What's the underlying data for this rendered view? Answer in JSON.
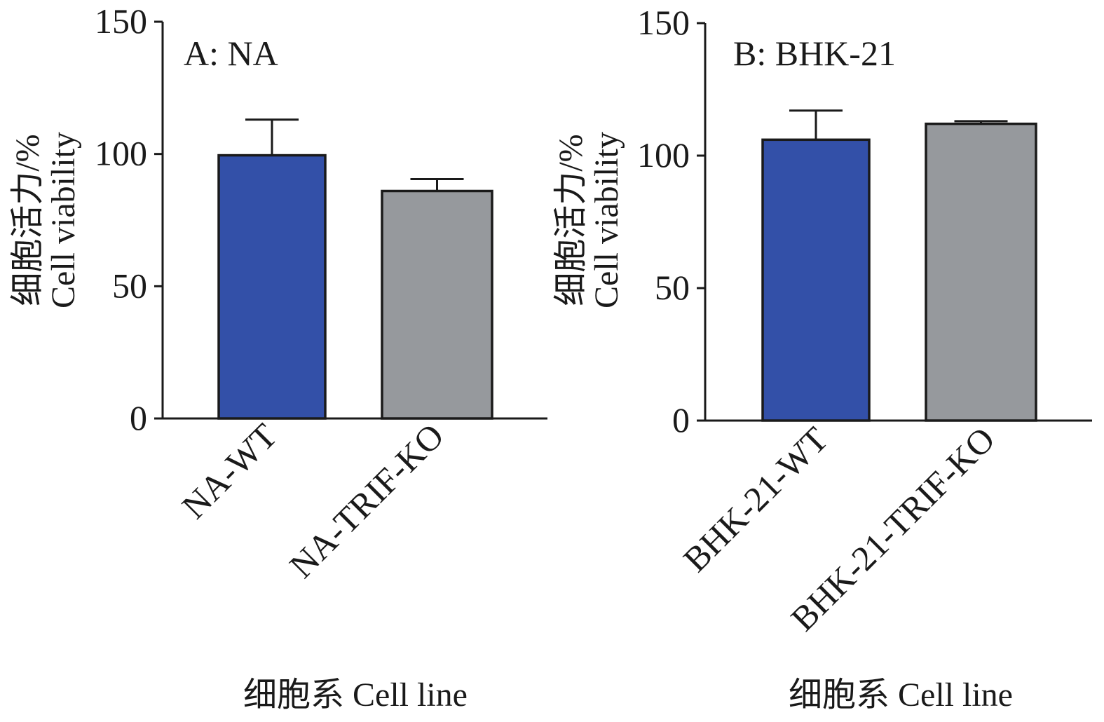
{
  "chart_data": [
    {
      "type": "bar",
      "panel_label": "A: NA",
      "categories": [
        "NA-WT",
        "NA-TRIF-KO"
      ],
      "values": [
        99.5,
        86
      ],
      "errors": [
        13.5,
        4.5
      ],
      "colors": [
        "#3350a8",
        "#96999d"
      ],
      "ylim": [
        0,
        150
      ],
      "yticks": [
        "0",
        "50",
        "100",
        "150"
      ],
      "ylabel_cn": "细胞活力/%",
      "ylabel_en": "Cell viability",
      "xlabel": "细胞系 Cell line"
    },
    {
      "type": "bar",
      "panel_label": "B: BHK-21",
      "categories": [
        "BHK-21-WT",
        "BHK-21-TRIF-KO"
      ],
      "values": [
        106,
        112
      ],
      "errors": [
        11,
        1
      ],
      "colors": [
        "#3350a8",
        "#96999d"
      ],
      "ylim": [
        0,
        150
      ],
      "yticks": [
        "0",
        "50",
        "100",
        "150"
      ],
      "ylabel_cn": "细胞活力/%",
      "ylabel_en": "Cell viability",
      "xlabel": "细胞系 Cell line"
    }
  ]
}
